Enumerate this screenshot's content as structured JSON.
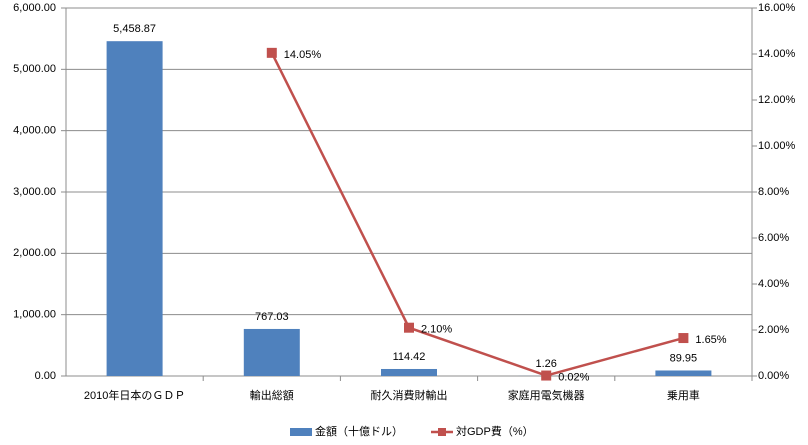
{
  "chart_data": {
    "type": "bar",
    "categories": [
      "2010年日本のＧＤＰ",
      "輸出総額",
      "耐久消費財輸出",
      "家庭用電気機器",
      "乗用車"
    ],
    "series": [
      {
        "name": "金額（十億ドル）",
        "type": "bar",
        "color": "#4f81bd",
        "values": [
          5458.87,
          767.03,
          114.42,
          1.26,
          89.95
        ],
        "value_labels": [
          "5,458.87",
          "767.03",
          "114.42",
          "1.26",
          "89.95"
        ]
      },
      {
        "name": "対GDP費（%）",
        "type": "line",
        "axis": "y2",
        "color": "#c0504d",
        "values": [
          null,
          14.05,
          2.1,
          0.02,
          1.65
        ],
        "value_labels": [
          null,
          "14.05%",
          "2.10%",
          "0.02%",
          "1.65%"
        ]
      }
    ],
    "ylim": [
      0,
      6000
    ],
    "yticks": [
      {
        "value": 0,
        "label": "0.00"
      },
      {
        "value": 1000,
        "label": "1,000.00"
      },
      {
        "value": 2000,
        "label": "2,000.00"
      },
      {
        "value": 3000,
        "label": "3,000.00"
      },
      {
        "value": 4000,
        "label": "4,000.00"
      },
      {
        "value": 5000,
        "label": "5,000.00"
      },
      {
        "value": 6000,
        "label": "6,000.00"
      }
    ],
    "y2lim": [
      0,
      16
    ],
    "y2ticks": [
      {
        "value": 0,
        "label": "0.00%"
      },
      {
        "value": 2,
        "label": "2.00%"
      },
      {
        "value": 4,
        "label": "4.00%"
      },
      {
        "value": 6,
        "label": "6.00%"
      },
      {
        "value": 8,
        "label": "8.00%"
      },
      {
        "value": 10,
        "label": "10.00%"
      },
      {
        "value": 12,
        "label": "12.00%"
      },
      {
        "value": 14,
        "label": "14.00%"
      },
      {
        "value": 16,
        "label": "16.00%"
      }
    ],
    "grid": true,
    "legend": "bottom"
  }
}
